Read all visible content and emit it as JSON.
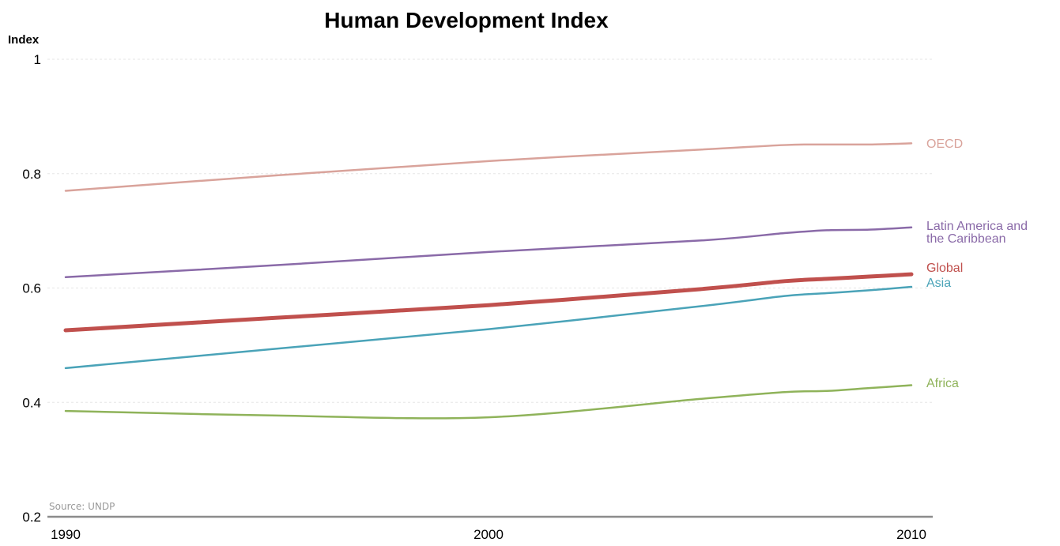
{
  "chart_data": {
    "type": "line",
    "title": "Human Development Index",
    "ylabel": "Index",
    "xlabel": "",
    "source": "Source: UNDP",
    "ylim": [
      0.2,
      1.0
    ],
    "xlim": [
      1990,
      2010
    ],
    "yticks": [
      "0.2",
      "0.4",
      "0.6",
      "0.8",
      "1"
    ],
    "xticks": [
      "1990",
      "2000",
      "2010"
    ],
    "grid": "horizontal dotted",
    "legend": "inline labels at right end of lines",
    "x": [
      1990,
      1995,
      2000,
      2005,
      2007,
      2008,
      2009,
      2010
    ],
    "series": [
      {
        "name": "OECD",
        "color": "#d9a39b",
        "width": 2.5,
        "values": [
          0.77,
          0.797,
          0.822,
          0.842,
          0.85,
          0.851,
          0.851,
          0.853
        ]
      },
      {
        "name": "Latin America and the Caribbean",
        "lines": [
          "Latin America and",
          "the Caribbean"
        ],
        "color": "#8a6aa8",
        "width": 2.5,
        "values": [
          0.619,
          0.64,
          0.663,
          0.683,
          0.696,
          0.701,
          0.702,
          0.706
        ]
      },
      {
        "name": "Global",
        "color": "#c0504d",
        "width": 5,
        "values": [
          0.526,
          0.548,
          0.57,
          0.598,
          0.612,
          0.616,
          0.62,
          0.624
        ]
      },
      {
        "name": "Asia",
        "color": "#4aa3b8",
        "width": 2.5,
        "values": [
          0.46,
          0.494,
          0.528,
          0.568,
          0.586,
          0.591,
          0.596,
          0.602
        ]
      },
      {
        "name": "Africa",
        "color": "#8fb35a",
        "width": 2.5,
        "values": [
          0.385,
          0.377,
          0.374,
          0.406,
          0.418,
          0.42,
          0.425,
          0.43
        ]
      }
    ]
  }
}
